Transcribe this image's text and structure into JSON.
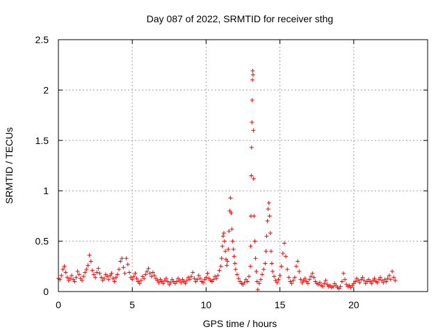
{
  "chart_data": {
    "type": "scatter",
    "title": "Day 087 of 2022, SRMTID for receiver sthg",
    "xlabel": "GPS time / hours",
    "ylabel": "SRMTID / TECUs",
    "xlim": [
      0,
      25
    ],
    "ylim": [
      0,
      2.5
    ],
    "xticks": [
      0,
      5,
      10,
      15,
      20
    ],
    "xtick_labels": [
      "0",
      "5",
      "10",
      "15",
      "20"
    ],
    "yticks": [
      0,
      0.5,
      1,
      1.5,
      2,
      2.5
    ],
    "ytick_labels": [
      "0",
      "0.5",
      "1",
      "1.5",
      "2",
      "2.5"
    ],
    "grid": true,
    "marker": "plus",
    "color": "#ff0000",
    "series": [
      {
        "name": "SRMTID",
        "points": [
          [
            0.0,
            0.13
          ],
          [
            0.1,
            0.12
          ],
          [
            0.2,
            0.16
          ],
          [
            0.3,
            0.22
          ],
          [
            0.4,
            0.25
          ],
          [
            0.5,
            0.19
          ],
          [
            0.6,
            0.14
          ],
          [
            0.7,
            0.11
          ],
          [
            0.8,
            0.13
          ],
          [
            0.9,
            0.16
          ],
          [
            1.0,
            0.12
          ],
          [
            1.1,
            0.1
          ],
          [
            1.2,
            0.14
          ],
          [
            1.3,
            0.2
          ],
          [
            1.4,
            0.17
          ],
          [
            1.5,
            0.13
          ],
          [
            1.6,
            0.11
          ],
          [
            1.7,
            0.15
          ],
          [
            1.8,
            0.19
          ],
          [
            1.9,
            0.22
          ],
          [
            2.0,
            0.26
          ],
          [
            2.1,
            0.36
          ],
          [
            2.2,
            0.3
          ],
          [
            2.3,
            0.21
          ],
          [
            2.4,
            0.17
          ],
          [
            2.5,
            0.14
          ],
          [
            2.6,
            0.19
          ],
          [
            2.7,
            0.23
          ],
          [
            2.8,
            0.18
          ],
          [
            2.9,
            0.14
          ],
          [
            3.0,
            0.11
          ],
          [
            3.1,
            0.13
          ],
          [
            3.2,
            0.17
          ],
          [
            3.3,
            0.15
          ],
          [
            3.4,
            0.12
          ],
          [
            3.5,
            0.16
          ],
          [
            3.6,
            0.18
          ],
          [
            3.7,
            0.13
          ],
          [
            3.8,
            0.1
          ],
          [
            3.9,
            0.14
          ],
          [
            4.0,
            0.17
          ],
          [
            4.1,
            0.22
          ],
          [
            4.2,
            0.3
          ],
          [
            4.3,
            0.33
          ],
          [
            4.4,
            0.24
          ],
          [
            4.5,
            0.18
          ],
          [
            4.6,
            0.33
          ],
          [
            4.7,
            0.27
          ],
          [
            4.8,
            0.19
          ],
          [
            4.9,
            0.14
          ],
          [
            5.0,
            0.12
          ],
          [
            5.1,
            0.15
          ],
          [
            5.2,
            0.18
          ],
          [
            5.3,
            0.13
          ],
          [
            5.4,
            0.1
          ],
          [
            5.5,
            0.08
          ],
          [
            5.6,
            0.11
          ],
          [
            5.7,
            0.15
          ],
          [
            5.8,
            0.13
          ],
          [
            5.9,
            0.17
          ],
          [
            6.0,
            0.2
          ],
          [
            6.1,
            0.23
          ],
          [
            6.2,
            0.18
          ],
          [
            6.3,
            0.15
          ],
          [
            6.4,
            0.19
          ],
          [
            6.5,
            0.16
          ],
          [
            6.6,
            0.13
          ],
          [
            6.7,
            0.11
          ],
          [
            6.8,
            0.09
          ],
          [
            6.9,
            0.12
          ],
          [
            7.0,
            0.1
          ],
          [
            7.1,
            0.08
          ],
          [
            7.2,
            0.11
          ],
          [
            7.3,
            0.13
          ],
          [
            7.4,
            0.1
          ],
          [
            7.5,
            0.07
          ],
          [
            7.6,
            0.09
          ],
          [
            7.7,
            0.12
          ],
          [
            7.8,
            0.1
          ],
          [
            7.9,
            0.08
          ],
          [
            8.0,
            0.1
          ],
          [
            8.1,
            0.13
          ],
          [
            8.2,
            0.11
          ],
          [
            8.3,
            0.09
          ],
          [
            8.4,
            0.12
          ],
          [
            8.5,
            0.1
          ],
          [
            8.6,
            0.08
          ],
          [
            8.7,
            0.11
          ],
          [
            8.8,
            0.14
          ],
          [
            8.9,
            0.12
          ],
          [
            9.0,
            0.15
          ],
          [
            9.1,
            0.19
          ],
          [
            9.2,
            0.13
          ],
          [
            9.3,
            0.1
          ],
          [
            9.4,
            0.12
          ],
          [
            9.5,
            0.16
          ],
          [
            9.6,
            0.13
          ],
          [
            9.7,
            0.1
          ],
          [
            9.8,
            0.09
          ],
          [
            9.9,
            0.12
          ],
          [
            10.0,
            0.14
          ],
          [
            10.1,
            0.18
          ],
          [
            10.2,
            0.13
          ],
          [
            10.3,
            0.11
          ],
          [
            10.4,
            0.1
          ],
          [
            10.5,
            0.12
          ],
          [
            10.6,
            0.15
          ],
          [
            10.7,
            0.13
          ],
          [
            10.8,
            0.16
          ],
          [
            10.9,
            0.21
          ],
          [
            11.0,
            0.25
          ],
          [
            11.05,
            0.33
          ],
          [
            11.1,
            0.45
          ],
          [
            11.15,
            0.55
          ],
          [
            11.2,
            0.58
          ],
          [
            11.25,
            0.5
          ],
          [
            11.3,
            0.4
          ],
          [
            11.35,
            0.32
          ],
          [
            11.4,
            0.26
          ],
          [
            11.45,
            0.3
          ],
          [
            11.5,
            0.42
          ],
          [
            11.55,
            0.6
          ],
          [
            11.6,
            0.8
          ],
          [
            11.65,
            0.93
          ],
          [
            11.7,
            0.78
          ],
          [
            11.75,
            0.62
          ],
          [
            11.8,
            0.5
          ],
          [
            11.85,
            0.42
          ],
          [
            11.9,
            0.35
          ],
          [
            11.95,
            0.28
          ],
          [
            12.0,
            0.22
          ],
          [
            12.1,
            0.17
          ],
          [
            12.2,
            0.13
          ],
          [
            12.3,
            0.1
          ],
          [
            12.4,
            0.08
          ],
          [
            12.5,
            0.07
          ],
          [
            12.6,
            0.09
          ],
          [
            12.7,
            0.12
          ],
          [
            12.8,
            0.1
          ],
          [
            12.9,
            0.15
          ],
          [
            13.0,
            0.25
          ],
          [
            13.02,
            0.45
          ],
          [
            13.04,
            0.75
          ],
          [
            13.06,
            1.15
          ],
          [
            13.08,
            1.43
          ],
          [
            13.1,
            1.68
          ],
          [
            13.12,
            1.9
          ],
          [
            13.14,
            2.1
          ],
          [
            13.16,
            2.19
          ],
          [
            13.18,
            2.15
          ],
          [
            13.2,
            1.6
          ],
          [
            13.22,
            1.12
          ],
          [
            13.25,
            0.75
          ],
          [
            13.3,
            0.5
          ],
          [
            13.35,
            0.33
          ],
          [
            13.4,
            0.2
          ],
          [
            13.45,
            0.1
          ],
          [
            13.5,
            0.02
          ],
          [
            13.6,
            0.08
          ],
          [
            13.7,
            0.12
          ],
          [
            13.8,
            0.17
          ],
          [
            13.9,
            0.22
          ],
          [
            14.0,
            0.28
          ],
          [
            14.05,
            0.4
          ],
          [
            14.1,
            0.55
          ],
          [
            14.15,
            0.7
          ],
          [
            14.2,
            0.82
          ],
          [
            14.25,
            0.88
          ],
          [
            14.3,
            0.75
          ],
          [
            14.35,
            0.58
          ],
          [
            14.4,
            0.4
          ],
          [
            14.45,
            0.28
          ],
          [
            14.5,
            0.2
          ],
          [
            14.6,
            0.15
          ],
          [
            14.7,
            0.11
          ],
          [
            14.8,
            0.09
          ],
          [
            14.9,
            0.12
          ],
          [
            15.0,
            0.16
          ],
          [
            15.1,
            0.25
          ],
          [
            15.2,
            0.38
          ],
          [
            15.3,
            0.48
          ],
          [
            15.4,
            0.35
          ],
          [
            15.5,
            0.22
          ],
          [
            15.6,
            0.14
          ],
          [
            15.7,
            0.1
          ],
          [
            15.8,
            0.08
          ],
          [
            15.9,
            0.11
          ],
          [
            16.0,
            0.14
          ],
          [
            16.1,
            0.25
          ],
          [
            16.2,
            0.3
          ],
          [
            16.3,
            0.2
          ],
          [
            16.4,
            0.12
          ],
          [
            16.5,
            0.09
          ],
          [
            16.6,
            0.11
          ],
          [
            16.7,
            0.13
          ],
          [
            16.8,
            0.1
          ],
          [
            16.9,
            0.08
          ],
          [
            17.0,
            0.12
          ],
          [
            17.1,
            0.15
          ],
          [
            17.2,
            0.18
          ],
          [
            17.3,
            0.14
          ],
          [
            17.4,
            0.1
          ],
          [
            17.5,
            0.08
          ],
          [
            17.6,
            0.07
          ],
          [
            17.7,
            0.09
          ],
          [
            17.8,
            0.06
          ],
          [
            17.9,
            0.05
          ],
          [
            18.0,
            0.08
          ],
          [
            18.1,
            0.11
          ],
          [
            18.2,
            0.07
          ],
          [
            18.3,
            0.05
          ],
          [
            18.4,
            0.06
          ],
          [
            18.5,
            0.04
          ],
          [
            18.6,
            0.05
          ],
          [
            18.7,
            0.08
          ],
          [
            18.8,
            0.06
          ],
          [
            18.9,
            0.04
          ],
          [
            19.0,
            0.03
          ],
          [
            19.1,
            0.05
          ],
          [
            19.2,
            0.1
          ],
          [
            19.3,
            0.18
          ],
          [
            19.4,
            0.12
          ],
          [
            19.5,
            0.07
          ],
          [
            19.6,
            0.05
          ],
          [
            19.7,
            0.06
          ],
          [
            19.8,
            0.04
          ],
          [
            19.9,
            0.06
          ],
          [
            20.0,
            0.08
          ],
          [
            20.1,
            0.1
          ],
          [
            20.2,
            0.13
          ],
          [
            20.3,
            0.11
          ],
          [
            20.4,
            0.09
          ],
          [
            20.5,
            0.12
          ],
          [
            20.6,
            0.14
          ],
          [
            20.7,
            0.11
          ],
          [
            20.8,
            0.08
          ],
          [
            20.9,
            0.1
          ],
          [
            21.0,
            0.12
          ],
          [
            21.1,
            0.1
          ],
          [
            21.2,
            0.08
          ],
          [
            21.3,
            0.11
          ],
          [
            21.4,
            0.13
          ],
          [
            21.5,
            0.1
          ],
          [
            21.6,
            0.09
          ],
          [
            21.7,
            0.12
          ],
          [
            21.8,
            0.14
          ],
          [
            21.9,
            0.11
          ],
          [
            22.0,
            0.09
          ],
          [
            22.1,
            0.12
          ],
          [
            22.2,
            0.1
          ],
          [
            22.3,
            0.13
          ],
          [
            22.4,
            0.16
          ],
          [
            22.5,
            0.12
          ],
          [
            22.6,
            0.2
          ],
          [
            22.7,
            0.14
          ],
          [
            22.8,
            0.11
          ]
        ]
      }
    ]
  }
}
